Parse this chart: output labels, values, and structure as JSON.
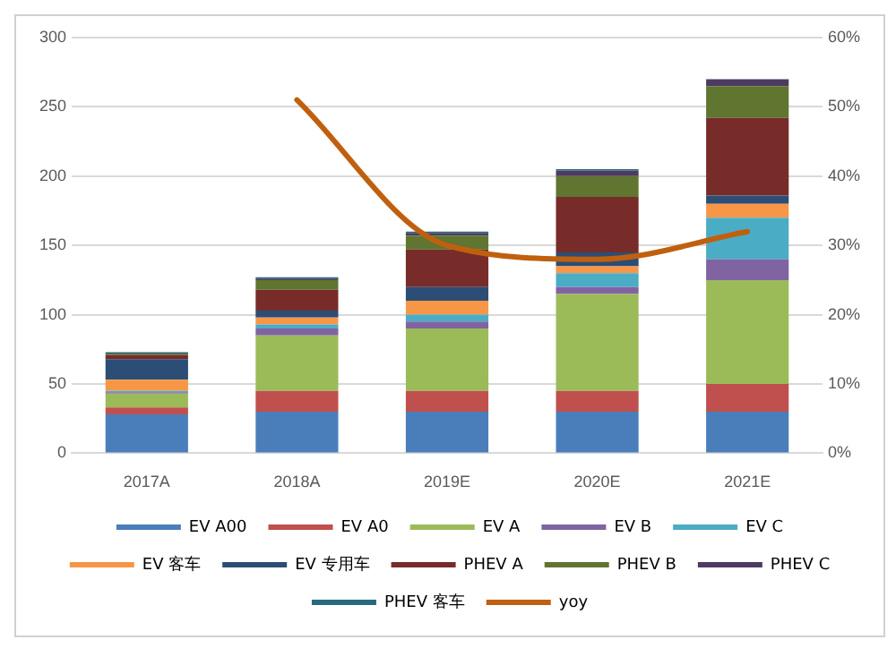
{
  "chart_data": {
    "type": "bar",
    "stacked": true,
    "categories": [
      "2017A",
      "2018A",
      "2019E",
      "2020E",
      "2021E"
    ],
    "series": [
      {
        "name": "EV A00",
        "color": "#4a7ebb",
        "values": [
          28,
          30,
          30,
          30,
          30
        ]
      },
      {
        "name": "EV A0",
        "color": "#c0504d",
        "values": [
          5,
          15,
          15,
          15,
          20
        ]
      },
      {
        "name": "EV A",
        "color": "#9bbb59",
        "values": [
          10,
          40,
          45,
          70,
          75
        ]
      },
      {
        "name": "EV B",
        "color": "#8064a2",
        "values": [
          1,
          5,
          5,
          5,
          15
        ]
      },
      {
        "name": "EV C",
        "color": "#4bacc6",
        "values": [
          1,
          3,
          5,
          10,
          30
        ]
      },
      {
        "name": "EV 客车",
        "color": "#f79646",
        "values": [
          8,
          5,
          10,
          5,
          10
        ]
      },
      {
        "name": "EV 专用车",
        "color": "#2c4d75",
        "values": [
          15,
          5,
          10,
          10,
          6
        ]
      },
      {
        "name": "PHEV A",
        "color": "#772c2a",
        "values": [
          3,
          15,
          27,
          40,
          56
        ]
      },
      {
        "name": "PHEV B",
        "color": "#5f7530",
        "values": [
          1,
          7,
          10,
          15,
          23
        ]
      },
      {
        "name": "PHEV C",
        "color": "#4d3b62",
        "values": [
          0,
          1,
          2,
          4,
          5
        ]
      },
      {
        "name": "PHEV 客车",
        "color": "#276a7c",
        "values": [
          1,
          1,
          1,
          1,
          0
        ]
      },
      {
        "name": "yoy",
        "type": "line",
        "axis": "y2",
        "color": "#c0600e",
        "values": [
          null,
          51,
          30,
          28,
          32
        ]
      }
    ],
    "ylim": [
      0,
      300
    ],
    "yticks": [
      0,
      50,
      100,
      150,
      200,
      250,
      300
    ],
    "y2lim": [
      0,
      60
    ],
    "y2ticks": [
      {
        "value": 0,
        "label": "0%"
      },
      {
        "value": 10,
        "label": "10%"
      },
      {
        "value": 20,
        "label": "20%"
      },
      {
        "value": 30,
        "label": "30%"
      },
      {
        "value": 40,
        "label": "40%"
      },
      {
        "value": 50,
        "label": "50%"
      },
      {
        "value": 60,
        "label": "60%"
      }
    ],
    "grid": "y",
    "legend": "bottom",
    "marker": "none"
  }
}
